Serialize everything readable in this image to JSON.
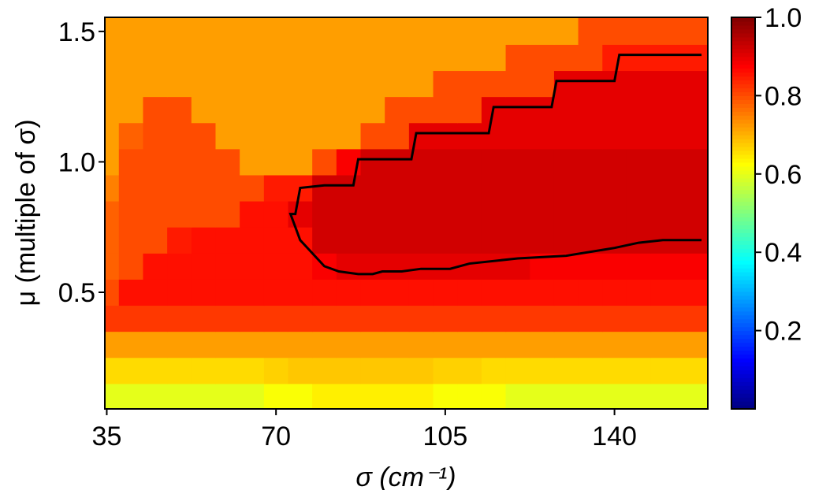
{
  "chart_data": {
    "type": "heatmap",
    "xlabel": "σ (cm⁻¹)",
    "ylabel": "μ (multiple of σ)",
    "x": [
      35,
      40,
      45,
      50,
      55,
      60,
      65,
      70,
      75,
      80,
      85,
      90,
      95,
      100,
      105,
      110,
      115,
      120,
      125,
      130,
      135,
      140,
      145,
      150,
      155
    ],
    "y": [
      0.1,
      0.2,
      0.3,
      0.4,
      0.5,
      0.6,
      0.7,
      0.8,
      0.9,
      1.0,
      1.1,
      1.2,
      1.3,
      1.4,
      1.5
    ],
    "z": [
      [
        0.6,
        0.6,
        0.6,
        0.6,
        0.6,
        0.6,
        0.6,
        0.62,
        0.62,
        0.64,
        0.64,
        0.64,
        0.64,
        0.64,
        0.62,
        0.62,
        0.62,
        0.6,
        0.6,
        0.6,
        0.6,
        0.6,
        0.6,
        0.6,
        0.6
      ],
      [
        0.66,
        0.66,
        0.66,
        0.66,
        0.66,
        0.66,
        0.66,
        0.67,
        0.68,
        0.68,
        0.68,
        0.68,
        0.68,
        0.68,
        0.67,
        0.67,
        0.66,
        0.66,
        0.66,
        0.66,
        0.66,
        0.66,
        0.66,
        0.66,
        0.66
      ],
      [
        0.72,
        0.72,
        0.72,
        0.72,
        0.72,
        0.72,
        0.72,
        0.72,
        0.72,
        0.72,
        0.72,
        0.72,
        0.72,
        0.72,
        0.72,
        0.72,
        0.72,
        0.72,
        0.72,
        0.72,
        0.72,
        0.72,
        0.72,
        0.72,
        0.72
      ],
      [
        0.82,
        0.82,
        0.82,
        0.82,
        0.82,
        0.82,
        0.82,
        0.82,
        0.82,
        0.82,
        0.82,
        0.82,
        0.82,
        0.82,
        0.82,
        0.82,
        0.82,
        0.82,
        0.82,
        0.82,
        0.82,
        0.82,
        0.82,
        0.82,
        0.82
      ],
      [
        0.8,
        0.86,
        0.86,
        0.86,
        0.86,
        0.86,
        0.86,
        0.86,
        0.86,
        0.86,
        0.86,
        0.86,
        0.86,
        0.86,
        0.86,
        0.86,
        0.86,
        0.86,
        0.86,
        0.86,
        0.86,
        0.86,
        0.86,
        0.86,
        0.86
      ],
      [
        0.78,
        0.8,
        0.86,
        0.86,
        0.86,
        0.86,
        0.86,
        0.86,
        0.86,
        0.88,
        0.9,
        0.9,
        0.9,
        0.9,
        0.9,
        0.9,
        0.9,
        0.9,
        0.88,
        0.88,
        0.88,
        0.88,
        0.88,
        0.88,
        0.88
      ],
      [
        0.78,
        0.8,
        0.8,
        0.85,
        0.86,
        0.86,
        0.86,
        0.86,
        0.86,
        0.92,
        0.92,
        0.92,
        0.92,
        0.92,
        0.92,
        0.92,
        0.92,
        0.92,
        0.92,
        0.92,
        0.92,
        0.92,
        0.92,
        0.92,
        0.92
      ],
      [
        0.78,
        0.8,
        0.8,
        0.8,
        0.8,
        0.8,
        0.86,
        0.86,
        0.9,
        0.92,
        0.92,
        0.92,
        0.92,
        0.92,
        0.92,
        0.92,
        0.92,
        0.92,
        0.92,
        0.92,
        0.92,
        0.92,
        0.92,
        0.92,
        0.92
      ],
      [
        0.75,
        0.8,
        0.8,
        0.8,
        0.8,
        0.8,
        0.8,
        0.85,
        0.85,
        0.92,
        0.92,
        0.92,
        0.92,
        0.92,
        0.92,
        0.92,
        0.92,
        0.92,
        0.92,
        0.92,
        0.92,
        0.92,
        0.92,
        0.92,
        0.92
      ],
      [
        0.72,
        0.8,
        0.8,
        0.8,
        0.8,
        0.8,
        0.72,
        0.72,
        0.72,
        0.8,
        0.88,
        0.92,
        0.92,
        0.92,
        0.92,
        0.92,
        0.92,
        0.92,
        0.92,
        0.92,
        0.92,
        0.92,
        0.92,
        0.92,
        0.92
      ],
      [
        0.72,
        0.78,
        0.8,
        0.8,
        0.8,
        0.72,
        0.72,
        0.72,
        0.72,
        0.72,
        0.72,
        0.8,
        0.8,
        0.9,
        0.9,
        0.9,
        0.9,
        0.9,
        0.9,
        0.9,
        0.9,
        0.9,
        0.9,
        0.9,
        0.9
      ],
      [
        0.72,
        0.72,
        0.8,
        0.8,
        0.72,
        0.72,
        0.72,
        0.72,
        0.72,
        0.72,
        0.72,
        0.72,
        0.8,
        0.8,
        0.8,
        0.8,
        0.9,
        0.9,
        0.9,
        0.9,
        0.9,
        0.9,
        0.9,
        0.9,
        0.9
      ],
      [
        0.72,
        0.72,
        0.72,
        0.72,
        0.72,
        0.72,
        0.72,
        0.72,
        0.72,
        0.72,
        0.72,
        0.72,
        0.72,
        0.72,
        0.8,
        0.8,
        0.8,
        0.8,
        0.8,
        0.9,
        0.9,
        0.9,
        0.9,
        0.9,
        0.9
      ],
      [
        0.72,
        0.72,
        0.72,
        0.72,
        0.72,
        0.72,
        0.72,
        0.72,
        0.72,
        0.72,
        0.72,
        0.72,
        0.72,
        0.72,
        0.72,
        0.72,
        0.72,
        0.8,
        0.8,
        0.8,
        0.8,
        0.85,
        0.85,
        0.85,
        0.85
      ],
      [
        0.72,
        0.72,
        0.72,
        0.72,
        0.72,
        0.72,
        0.72,
        0.72,
        0.72,
        0.72,
        0.72,
        0.72,
        0.72,
        0.72,
        0.72,
        0.72,
        0.72,
        0.72,
        0.72,
        0.72,
        0.8,
        0.8,
        0.8,
        0.8,
        0.8
      ]
    ],
    "contour": {
      "color": "#000000",
      "x": [
        158,
        150,
        145,
        140,
        130,
        120,
        110,
        106,
        100,
        96,
        92,
        90,
        87,
        83,
        80,
        77,
        75,
        73,
        74,
        75,
        80,
        86,
        87,
        98,
        99,
        114,
        115,
        127,
        128,
        140,
        141,
        158
      ],
      "y": [
        0.7,
        0.7,
        0.69,
        0.67,
        0.64,
        0.63,
        0.61,
        0.59,
        0.59,
        0.58,
        0.58,
        0.57,
        0.57,
        0.58,
        0.6,
        0.66,
        0.7,
        0.8,
        0.8,
        0.9,
        0.91,
        0.91,
        1.01,
        1.01,
        1.11,
        1.11,
        1.21,
        1.21,
        1.31,
        1.31,
        1.41,
        1.41
      ]
    },
    "colormap": "jet",
    "clim": [
      0,
      1
    ],
    "cticks": [
      0.2,
      0.4,
      0.6,
      0.8,
      {
        "value": 1,
        "label": "1.0"
      }
    ],
    "xlim": [
      34.6,
      159.3
    ],
    "ylim": [
      0.053,
      1.554
    ],
    "xticks": [
      35,
      70,
      105,
      140
    ],
    "yticks": [
      0.5,
      {
        "value": 1,
        "label": "1.0"
      },
      1.5
    ]
  }
}
